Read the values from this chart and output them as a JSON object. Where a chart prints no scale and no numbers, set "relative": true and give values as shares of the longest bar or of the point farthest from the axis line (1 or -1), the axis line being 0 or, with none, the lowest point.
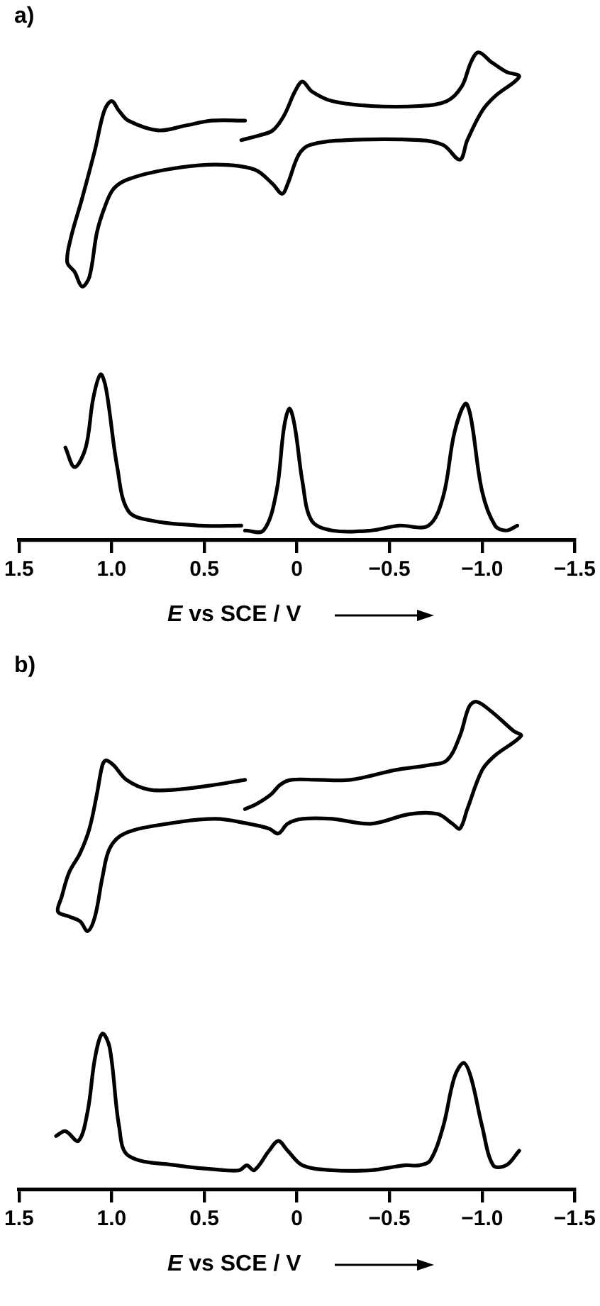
{
  "chart_data": [
    {
      "type": "line",
      "title": "a)",
      "xlabel": "E vs SCE / V",
      "relative": true,
      "xlim": [
        1.5,
        -1.5
      ],
      "xticks": [
        {
          "value": 1.5,
          "label": "1.5"
        },
        {
          "value": 1.0,
          "label": "1.0"
        },
        {
          "value": 0.5,
          "label": "0.5"
        },
        {
          "value": 0,
          "label": "0"
        },
        {
          "value": -0.5,
          "label": "−0.5"
        },
        {
          "value": -1.0,
          "label": "−1.0"
        },
        {
          "value": -1.5,
          "label": "−1.5"
        }
      ],
      "tick_labels": "x",
      "grid": false,
      "legend": false,
      "marker": "none",
      "line_style": "solid",
      "series": [
        {
          "color": "#000000",
          "x": [
            0.28,
            0.46,
            0.6,
            0.75,
            0.91,
            0.96,
            1.0,
            1.04,
            1.09,
            1.16,
            1.22,
            1.24,
            1.2,
            1.16,
            1.12,
            1.08,
            1.04,
            0.99,
            0.91,
            0.7,
            0.44,
            0.23,
            0.13,
            0.08,
            0.05,
            -0.01,
            -0.07,
            -0.27,
            -0.66,
            -0.79,
            -0.88,
            -0.92,
            -1.0,
            -1.07,
            -1.2,
            -1.13,
            -1.05,
            -0.98,
            -0.94,
            -0.89,
            -0.81,
            -0.66,
            -0.4,
            -0.19,
            -0.08,
            -0.03,
            0.01,
            0.07,
            0.13,
            0.2,
            0.3
          ],
          "values": [
            0.86,
            0.86,
            0.85,
            0.84,
            0.86,
            0.88,
            0.9,
            0.88,
            0.8,
            0.7,
            0.62,
            0.57,
            0.55,
            0.52,
            0.54,
            0.63,
            0.68,
            0.72,
            0.74,
            0.76,
            0.77,
            0.76,
            0.73,
            0.71,
            0.73,
            0.79,
            0.81,
            0.82,
            0.82,
            0.81,
            0.78,
            0.82,
            0.88,
            0.91,
            0.95,
            0.96,
            0.98,
            1.0,
            0.98,
            0.93,
            0.9,
            0.89,
            0.89,
            0.9,
            0.92,
            0.94,
            0.92,
            0.87,
            0.84,
            0.83,
            0.82
          ]
        },
        {
          "color": "#000000",
          "x": [
            1.25,
            1.2,
            1.14,
            1.1,
            1.06,
            1.03,
            0.97,
            0.91,
            0.78,
            0.52,
            0.3,
            0.29,
            0.28,
            0.18,
            0.11,
            0.07,
            0.04,
            0.01,
            -0.03,
            -0.08,
            -0.19,
            -0.4,
            -0.55,
            -0.71,
            -0.79,
            -0.85,
            -0.91,
            -0.94,
            -1.0,
            -1.07,
            -1.13,
            -1.19
          ],
          "values": [
            0.19,
            0.15,
            0.19,
            0.29,
            0.34,
            0.31,
            0.15,
            0.06,
            0.04,
            0.03,
            0.03,
            null,
            0.02,
            0.02,
            0.1,
            0.23,
            0.27,
            0.23,
            0.12,
            0.04,
            0.02,
            0.02,
            0.03,
            0.03,
            0.09,
            0.22,
            0.28,
            0.25,
            0.1,
            0.03,
            0.02,
            0.03
          ]
        }
      ]
    },
    {
      "type": "line",
      "title": "b)",
      "xlabel": "E vs SCE / V",
      "relative": true,
      "xlim": [
        1.5,
        -1.5
      ],
      "xticks": [
        {
          "value": 1.5,
          "label": "1.5"
        },
        {
          "value": 1.0,
          "label": "1.0"
        },
        {
          "value": 0.5,
          "label": "0.5"
        },
        {
          "value": 0,
          "label": "0"
        },
        {
          "value": -0.5,
          "label": "−0.5"
        },
        {
          "value": -1.0,
          "label": "−1.0"
        },
        {
          "value": -1.5,
          "label": "−1.5"
        }
      ],
      "tick_labels": "x",
      "grid": false,
      "legend": false,
      "marker": "none",
      "line_style": "solid",
      "series": [
        {
          "color": "#000000",
          "x": [
            0.28,
            0.44,
            0.65,
            0.8,
            0.92,
            0.99,
            1.03,
            1.05,
            1.08,
            1.12,
            1.17,
            1.23,
            1.27,
            1.29,
            1.23,
            1.17,
            1.13,
            1.09,
            1.05,
            1.01,
            0.93,
            0.7,
            0.44,
            0.26,
            0.15,
            0.1,
            0.05,
            -0.03,
            -0.19,
            -0.4,
            -0.61,
            -0.76,
            -0.84,
            -0.88,
            -0.92,
            -1.0,
            -1.07,
            -1.21,
            -1.17,
            -1.05,
            -0.97,
            -0.93,
            -0.88,
            -0.81,
            -0.71,
            -0.53,
            -0.29,
            -0.11,
            0.03,
            0.09,
            0.14,
            0.22,
            0.28
          ],
          "values": [
            0.84,
            0.83,
            0.82,
            0.82,
            0.84,
            0.87,
            0.88,
            0.87,
            0.81,
            0.74,
            0.69,
            0.65,
            0.6,
            0.57,
            0.56,
            0.55,
            0.53,
            0.56,
            0.64,
            0.7,
            0.73,
            0.75,
            0.76,
            0.75,
            0.74,
            0.73,
            0.75,
            0.76,
            0.76,
            0.75,
            0.77,
            0.77,
            0.75,
            0.74,
            0.78,
            0.86,
            0.89,
            0.93,
            0.94,
            0.98,
            1.0,
            0.99,
            0.93,
            0.88,
            0.87,
            0.86,
            0.84,
            0.84,
            0.84,
            0.83,
            0.81,
            0.79,
            0.78
          ]
        },
        {
          "color": "#000000",
          "x": [
            1.3,
            1.25,
            1.18,
            1.13,
            1.09,
            1.05,
            1.01,
            0.96,
            0.91,
            0.65,
            0.39,
            0.31,
            0.27,
            0.23,
            0.15,
            0.1,
            0.05,
            -0.03,
            -0.19,
            -0.4,
            -0.58,
            -0.66,
            -0.72,
            -0.79,
            -0.85,
            -0.9,
            -0.94,
            -1.0,
            -1.06,
            -1.13,
            -1.2
          ],
          "values": [
            0.11,
            0.12,
            0.1,
            0.16,
            0.27,
            0.32,
            0.29,
            0.13,
            0.07,
            0.05,
            0.04,
            0.04,
            0.05,
            0.04,
            0.08,
            0.1,
            0.08,
            0.05,
            0.04,
            0.04,
            0.05,
            0.05,
            0.06,
            0.13,
            0.23,
            0.26,
            0.23,
            0.13,
            0.05,
            0.05,
            0.08
          ]
        }
      ]
    }
  ]
}
